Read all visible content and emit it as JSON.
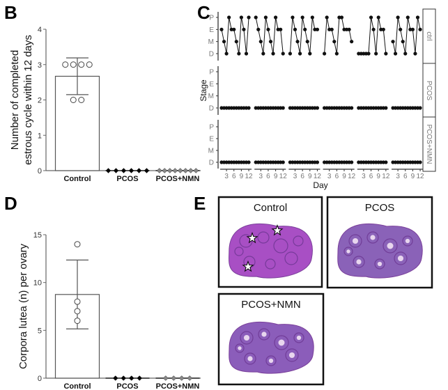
{
  "panels": {
    "B": "B",
    "C": "C",
    "D": "D",
    "E": "E"
  },
  "chart_data": [
    {
      "panel": "B",
      "type": "bar",
      "ylabel": "Number of completed estrous cycle within 12 days",
      "ylabel_lines": [
        "Number of completed",
        "estrous cycle within 12 days"
      ],
      "categories": [
        "Control",
        "PCOS",
        "PCOS+NMN"
      ],
      "ylim": [
        0,
        4
      ],
      "yticks": [
        0,
        1,
        2,
        3,
        4
      ],
      "means": [
        2.67,
        0,
        0
      ],
      "sd": [
        0.52,
        0,
        0
      ],
      "points": [
        [
          3,
          3,
          3,
          3,
          2,
          2
        ],
        [
          0,
          0,
          0,
          0,
          0,
          0
        ],
        [
          0,
          0,
          0,
          0,
          0,
          0,
          0,
          0
        ]
      ],
      "marker_colors": [
        "#ffffff",
        "#000000",
        "#888888"
      ]
    },
    {
      "panel": "C",
      "type": "line",
      "xlabel": "Day",
      "ylabel": "Stage",
      "stages": [
        "D",
        "M",
        "E",
        "P"
      ],
      "xticks": [
        3,
        6,
        9,
        12
      ],
      "facets": [
        {
          "label": "ctrl",
          "animals": [
            [
              "E",
              "M",
              "D",
              "P",
              "E",
              "E",
              "M",
              "D",
              "P",
              "E",
              "D",
              "P"
            ],
            [
              "P",
              "E",
              "M",
              "D",
              "P",
              "E",
              "M",
              "D",
              "P",
              "E",
              "E",
              "D"
            ],
            [
              "D",
              "P",
              "E",
              "M",
              "D",
              "P",
              "E",
              "M",
              "D",
              "P",
              "E",
              "E"
            ],
            [
              "D",
              "P",
              "E",
              "E",
              "M",
              "D",
              "P",
              "P",
              "E",
              "E",
              "E",
              "M"
            ],
            [
              "D",
              "D",
              "D",
              "D",
              "D",
              "P",
              "E",
              "D",
              "P",
              "E",
              "E",
              "D"
            ],
            [
              "M",
              "D",
              "P",
              "E",
              "M",
              "D",
              "P",
              "E",
              "E",
              "D",
              "P",
              "E"
            ]
          ]
        },
        {
          "label": "PCOS",
          "animals": [
            [
              "D",
              "D",
              "D",
              "D",
              "D",
              "D",
              "D",
              "D",
              "D",
              "D",
              "D",
              "D"
            ],
            [
              "D",
              "D",
              "D",
              "D",
              "D",
              "D",
              "D",
              "D",
              "D",
              "D",
              "D",
              "D"
            ],
            [
              "D",
              "D",
              "D",
              "D",
              "D",
              "D",
              "D",
              "D",
              "D",
              "D",
              "D",
              "D"
            ],
            [
              "D",
              "D",
              "D",
              "D",
              "D",
              "D",
              "D",
              "D",
              "D",
              "D",
              "D",
              "D"
            ],
            [
              "D",
              "D",
              "D",
              "D",
              "D",
              "D",
              "D",
              "D",
              "D",
              "D",
              "D",
              "D"
            ],
            [
              "D",
              "D",
              "D",
              "D",
              "D",
              "D",
              "D",
              "D",
              "D",
              "D",
              "D",
              "D"
            ]
          ]
        },
        {
          "label": "PCOS+NMN",
          "animals": [
            [
              "D",
              "D",
              "D",
              "D",
              "D",
              "D",
              "D",
              "D",
              "D",
              "D",
              "D",
              "D"
            ],
            [
              "D",
              "D",
              "D",
              "D",
              "D",
              "D",
              "D",
              "D",
              "D",
              "D",
              "D",
              "D"
            ],
            [
              "D",
              "D",
              "D",
              "D",
              "D",
              "D",
              "D",
              "D",
              "D",
              "D",
              "D",
              "D"
            ],
            [
              "D",
              "D",
              "D",
              "D",
              "D",
              "D",
              "D",
              "D",
              "D",
              "D",
              "D",
              "D"
            ],
            [
              "D",
              "D",
              "D",
              "D",
              "D",
              "D",
              "D",
              "D",
              "D",
              "D",
              "D",
              "D"
            ],
            [
              "D",
              "D",
              "D",
              "D",
              "D",
              "D",
              "D",
              "D",
              "D",
              "D",
              "D",
              "D"
            ]
          ]
        }
      ]
    },
    {
      "panel": "D",
      "type": "bar",
      "ylabel": "Corpora lutea (n) per ovary",
      "ylabel_lines": [
        "Corpora lutea (n) per ovary"
      ],
      "categories": [
        "Control",
        "PCOS",
        "PCOS+NMN"
      ],
      "ylim": [
        0,
        15
      ],
      "yticks": [
        0,
        5,
        10,
        15
      ],
      "means": [
        8.75,
        0,
        0
      ],
      "sd": [
        3.6,
        0,
        0
      ],
      "points": [
        [
          14,
          8,
          7,
          6
        ],
        [
          0,
          0,
          0,
          0
        ],
        [
          0,
          0,
          0,
          0
        ]
      ],
      "marker_colors": [
        "#ffffff",
        "#000000",
        "#888888"
      ]
    }
  ],
  "histology": {
    "images": [
      {
        "title": "Control",
        "stars": 3
      },
      {
        "title": "PCOS",
        "stars": 0
      },
      {
        "title": "PCOS+NMN",
        "stars": 0
      }
    ],
    "colors": {
      "control": "#a84fc4",
      "pcos": "#8a62b8",
      "nmn": "#8b5dba",
      "lumen": "#e8d6ee"
    }
  }
}
